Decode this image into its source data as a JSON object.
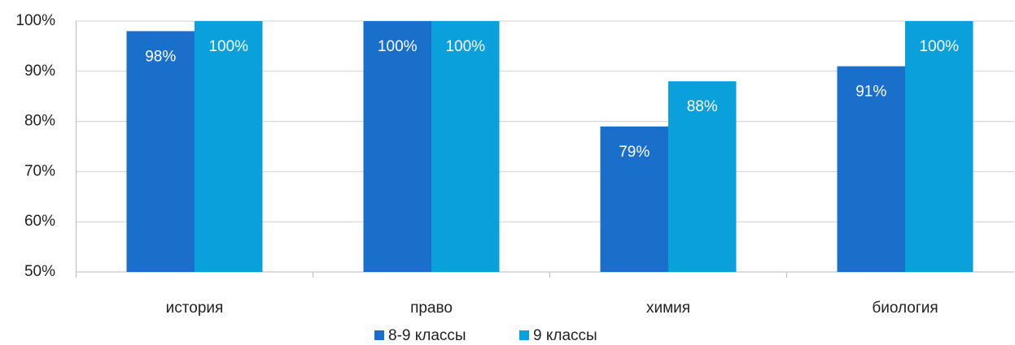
{
  "chart_data": {
    "type": "bar",
    "categories": [
      "история",
      "право",
      "химия",
      "биология"
    ],
    "series": [
      {
        "name": "8-9 классы",
        "color": "#1a6fca",
        "values": [
          98,
          100,
          79,
          91
        ],
        "value_labels": [
          "98%",
          "100%",
          "79%",
          "91%"
        ]
      },
      {
        "name": "9 классы",
        "color": "#0aa0dc",
        "values": [
          100,
          100,
          88,
          100
        ],
        "value_labels": [
          "100%",
          "100%",
          "88%",
          "100%"
        ]
      }
    ],
    "ylim": [
      50,
      100
    ],
    "yticks": [
      {
        "value": 50,
        "label": "50%"
      },
      {
        "value": 60,
        "label": "60%"
      },
      {
        "value": 70,
        "label": "70%"
      },
      {
        "value": 80,
        "label": "80%"
      },
      {
        "value": 90,
        "label": "90%"
      },
      {
        "value": 100,
        "label": "100%"
      }
    ],
    "grid": true,
    "legend": "bottom"
  }
}
